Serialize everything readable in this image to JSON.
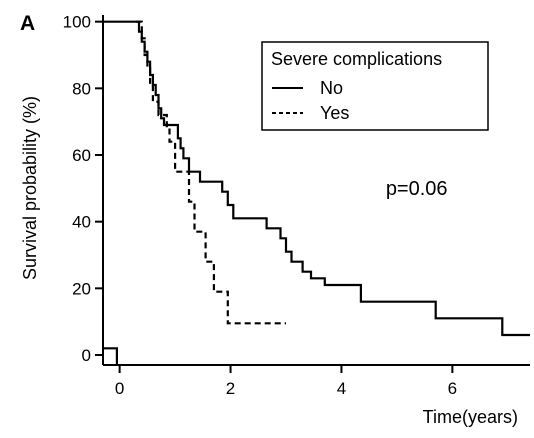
{
  "chart_data": {
    "type": "line",
    "subtype": "kaplan-meier-step",
    "panel_label": "A",
    "title": "",
    "xlabel": "Time(years)",
    "ylabel": "Survival probability (%)",
    "xlim": [
      -0.3,
      7.4
    ],
    "ylim": [
      -3,
      102
    ],
    "xticks": [
      0,
      2,
      4,
      6
    ],
    "yticks": [
      0,
      20,
      40,
      60,
      80,
      100
    ],
    "grid": false,
    "legend": {
      "title": "Severe complications",
      "position": "top-right",
      "entries": [
        {
          "label": "No",
          "style": "solid"
        },
        {
          "label": "Yes",
          "style": "dashed"
        }
      ]
    },
    "annotation": {
      "text": "p=0.06",
      "x": 4.8,
      "y": 48
    },
    "series": [
      {
        "name": "No",
        "style": "solid",
        "x": [
          -0.3,
          0.3,
          0.35,
          0.4,
          0.45,
          0.5,
          0.55,
          0.6,
          0.65,
          0.7,
          0.75,
          0.8,
          1.05,
          1.1,
          1.15,
          1.25,
          1.45,
          1.85,
          1.95,
          2.05,
          2.65,
          2.9,
          3.0,
          3.1,
          3.3,
          3.45,
          3.7,
          4.35,
          5.7,
          6.9,
          7.4
        ],
        "y": [
          100,
          100,
          97,
          94,
          91,
          88,
          84,
          81,
          78,
          74,
          71,
          69,
          65,
          62,
          59,
          55,
          52,
          49,
          45,
          41,
          38,
          35,
          31,
          28,
          25,
          23,
          21,
          16,
          11,
          6,
          6
        ]
      },
      {
        "name": "Yes",
        "style": "dashed",
        "x": [
          0.3,
          0.4,
          0.45,
          0.5,
          0.55,
          0.6,
          0.7,
          0.85,
          0.9,
          1.0,
          1.25,
          1.35,
          1.55,
          1.7,
          1.95,
          3.0
        ],
        "y": [
          100,
          95,
          90,
          86,
          81,
          76,
          72,
          68,
          64,
          55,
          46,
          37,
          28,
          19,
          9.5,
          9.5
        ]
      },
      {
        "name": "",
        "style": "solid",
        "x": [
          -0.3,
          -0.05,
          -0.05
        ],
        "y": [
          2,
          2,
          -3
        ]
      }
    ]
  }
}
